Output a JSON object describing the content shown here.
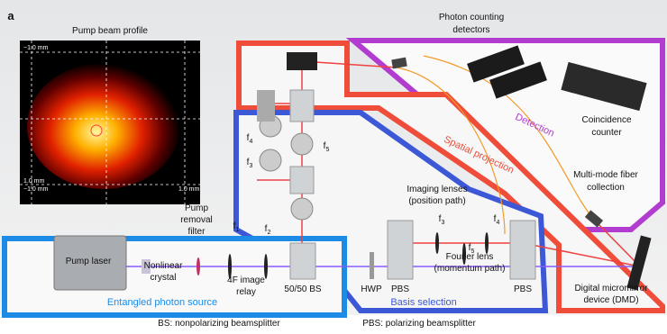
{
  "panel_label": "a",
  "beam_profile": {
    "title": "Pump beam profile",
    "top_left": "−1.0 mm",
    "bottom_left_y": "1.0 mm",
    "bottom_left_x": "−1.0 mm",
    "bottom_right": "1.0 mm"
  },
  "detection": {
    "detectors": [
      "Photon counting",
      "detectors"
    ],
    "region": "Detection",
    "counter": [
      "Coincidence",
      "counter"
    ]
  },
  "spatial_projection": {
    "region": "Spatial projection",
    "fiber": [
      "Multi-mode fiber",
      "collection"
    ],
    "dmd": [
      "Digital micromirror",
      "device (DMD)"
    ]
  },
  "basis_selection": {
    "region": "Basis selection",
    "imaging": [
      "Imaging lenses",
      "(position path)"
    ],
    "fourier": [
      "Fourier lens",
      "(momentum path)"
    ],
    "hwp": "HWP",
    "pbs_left": "PBS",
    "pbs_right": "PBS",
    "lenses": [
      {
        "base": "f",
        "sub": "3"
      },
      {
        "base": "f",
        "sub": "4"
      },
      {
        "base": "f",
        "sub": "5"
      }
    ]
  },
  "upper_arm": {
    "lenses": [
      {
        "base": "f",
        "sub": "4"
      },
      {
        "base": "f",
        "sub": "3"
      },
      {
        "base": "f",
        "sub": "5"
      }
    ]
  },
  "source": {
    "region": "Entangled photon source",
    "laser": "Pump laser",
    "filter": [
      "Pump",
      "removal",
      "filter"
    ],
    "crystal": [
      "Nonlinear",
      "crystal"
    ],
    "relay": [
      "4F image",
      "relay"
    ],
    "splitter": "50/50 BS",
    "lenses": [
      {
        "base": "f",
        "sub": "1"
      },
      {
        "base": "f",
        "sub": "2"
      }
    ]
  },
  "legend": [
    "BS: nonpolarizing beamsplitter",
    "PBS: polarizing beamsplitter"
  ]
}
